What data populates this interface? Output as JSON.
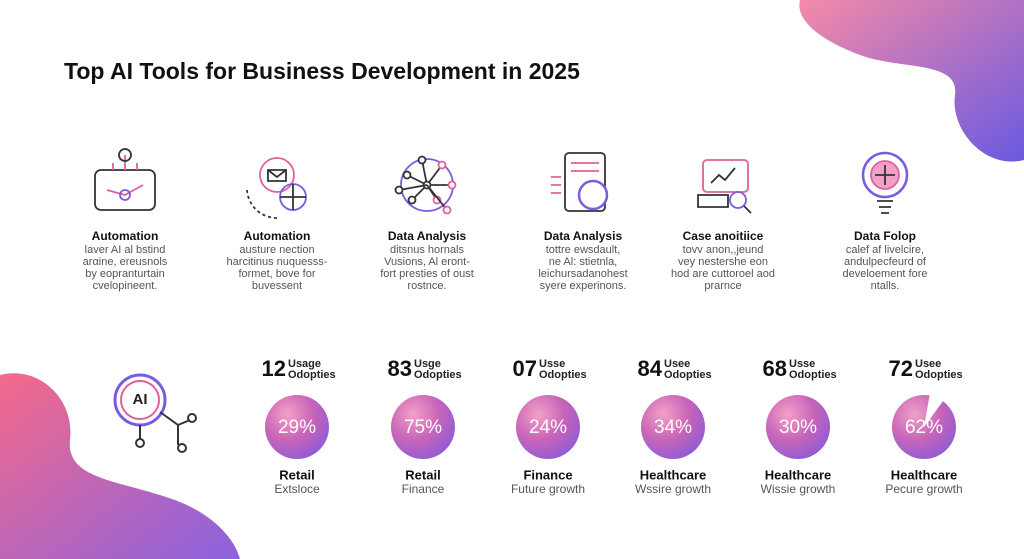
{
  "header": {
    "title": "Top AI Tools for Business Development in 2025"
  },
  "tools": [
    {
      "name": "Automation",
      "lines": [
        "laver AI al bstind",
        "arαine, ereusnols",
        "by eopranturtain",
        "cvelopineent."
      ]
    },
    {
      "name": "Automation",
      "lines": [
        "austure nection",
        "harcitinus nuquesss-",
        "formet, bove for",
        "buvessent"
      ]
    },
    {
      "name": "Data Analysis",
      "lines": [
        "ditsnus hornals",
        "Vusions, Al eront-",
        "fort presties of oust",
        "rostnce."
      ]
    },
    {
      "name": "Data Analysis",
      "lines": [
        "tottre ewsdault,",
        "ne Al: stietnla,",
        "leichursadanohest",
        "syere experinons."
      ]
    },
    {
      "name": "Case anoitiice",
      "lines": [
        "tovv anon,,jeund",
        "vey nestershe eon",
        "hod are cuttoroel aod",
        "prarnce"
      ]
    },
    {
      "name": "Data Folop",
      "lines": [
        "calef af livelcire,",
        "andulpecfeurd of",
        "develoement fore",
        "ntalls."
      ]
    }
  ],
  "badge": "AI",
  "stats": [
    {
      "number": "12",
      "label": [
        "Usage",
        "Odopties"
      ],
      "percent": "29%",
      "sector": "Retail",
      "note": "Extsloce"
    },
    {
      "number": "83",
      "label": [
        "Usge",
        "Odopties"
      ],
      "percent": "75%",
      "sector": "Retail",
      "note": "Finance"
    },
    {
      "number": "07",
      "label": [
        "Usse",
        "Odopties"
      ],
      "percent": "24%",
      "sector": "Finance",
      "note": "Future growth"
    },
    {
      "number": "84",
      "label": [
        "Usee",
        "Odopties"
      ],
      "percent": "34%",
      "sector": "Healthcare",
      "note": "Wssire growth"
    },
    {
      "number": "68",
      "label": [
        "Usse",
        "Odopties"
      ],
      "percent": "30%",
      "sector": "Healthcare",
      "note": "Wissie growth"
    },
    {
      "number": "72",
      "label": [
        "Usee",
        "Odopties"
      ],
      "percent": "62%",
      "sector": "Healthcare",
      "note": "Pecure growth"
    }
  ]
}
